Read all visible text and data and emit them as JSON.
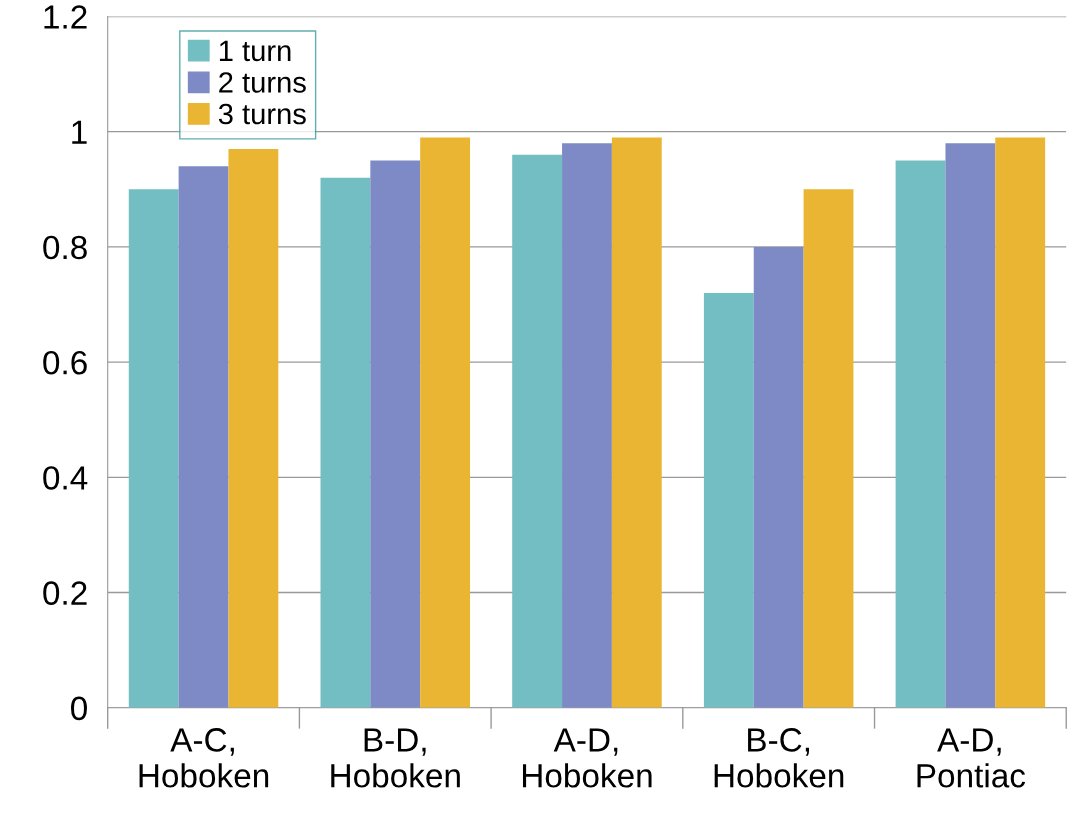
{
  "chart_data": {
    "type": "bar",
    "categories": [
      "A-C,\nHoboken",
      "B-D,\nHoboken",
      "A-D,\nHoboken",
      "B-C,\nHoboken",
      "A-D,\nPontiac"
    ],
    "series": [
      {
        "name": "1 turn",
        "color": "#72bec3",
        "values": [
          0.9,
          0.92,
          0.96,
          0.72,
          0.95
        ]
      },
      {
        "name": "2 turns",
        "color": "#7e8ac5",
        "values": [
          0.94,
          0.95,
          0.98,
          0.8,
          0.98
        ]
      },
      {
        "name": "3 turns",
        "color": "#e9b532",
        "values": [
          0.97,
          0.99,
          0.99,
          0.9,
          0.99
        ]
      }
    ],
    "ylim": [
      0,
      1.2
    ],
    "yticks": [
      0,
      0.2,
      0.4,
      0.6,
      0.8,
      1,
      1.2
    ],
    "grid": "y",
    "legend": "top left"
  }
}
